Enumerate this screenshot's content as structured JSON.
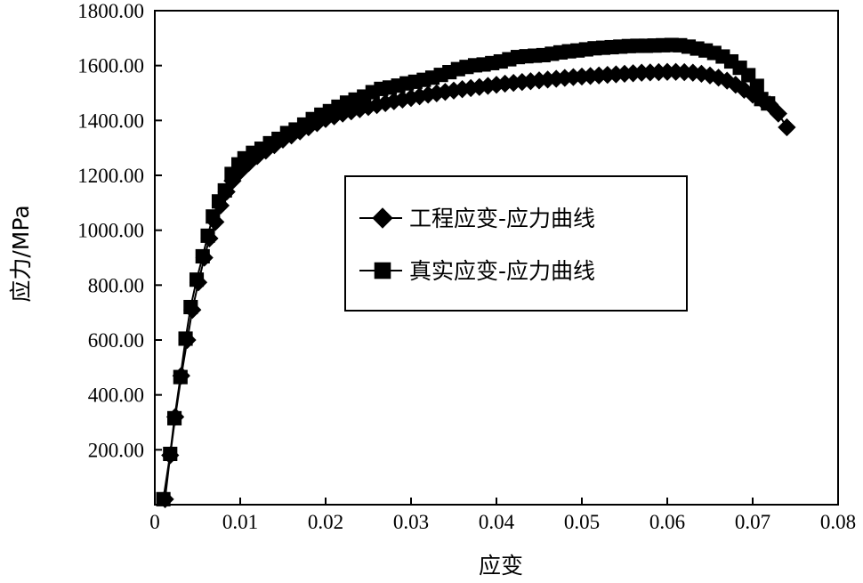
{
  "chart_data": {
    "type": "line",
    "xlabel": "应变",
    "ylabel": "应力/MPa",
    "xlim": [
      0,
      0.08
    ],
    "ylim": [
      0,
      1800
    ],
    "x_ticks": [
      "0",
      "0.01",
      "0.02",
      "0.03",
      "0.04",
      "0.05",
      "0.06",
      "0.07",
      "0.08"
    ],
    "y_ticks": [
      "200.00",
      "400.00",
      "600.00",
      "800.00",
      "1000.00",
      "1200.00",
      "1400.00",
      "1600.00",
      "1800.00"
    ],
    "grid": false,
    "legend_position": "center-right",
    "series": [
      {
        "name": "工程应变-应力曲线",
        "marker": "diamond",
        "color": "#000000",
        "points": [
          [
            0.0012,
            20
          ],
          [
            0.0018,
            180
          ],
          [
            0.0024,
            320
          ],
          [
            0.0031,
            470
          ],
          [
            0.0038,
            600
          ],
          [
            0.0044,
            710
          ],
          [
            0.0051,
            810
          ],
          [
            0.0058,
            900
          ],
          [
            0.0064,
            970
          ],
          [
            0.0071,
            1030
          ],
          [
            0.0077,
            1090
          ],
          [
            0.0084,
            1140
          ],
          [
            0.0091,
            1180
          ],
          [
            0.01,
            1215
          ],
          [
            0.011,
            1245
          ],
          [
            0.012,
            1270
          ],
          [
            0.013,
            1290
          ],
          [
            0.014,
            1310
          ],
          [
            0.015,
            1330
          ],
          [
            0.016,
            1345
          ],
          [
            0.017,
            1360
          ],
          [
            0.018,
            1375
          ],
          [
            0.019,
            1390
          ],
          [
            0.02,
            1405
          ],
          [
            0.021,
            1415
          ],
          [
            0.022,
            1425
          ],
          [
            0.023,
            1433
          ],
          [
            0.024,
            1441
          ],
          [
            0.025,
            1449
          ],
          [
            0.026,
            1456
          ],
          [
            0.027,
            1463
          ],
          [
            0.028,
            1470
          ],
          [
            0.029,
            1476
          ],
          [
            0.03,
            1482
          ],
          [
            0.031,
            1488
          ],
          [
            0.032,
            1494
          ],
          [
            0.033,
            1499
          ],
          [
            0.034,
            1504
          ],
          [
            0.035,
            1509
          ],
          [
            0.036,
            1514
          ],
          [
            0.037,
            1518
          ],
          [
            0.038,
            1522
          ],
          [
            0.039,
            1526
          ],
          [
            0.04,
            1530
          ],
          [
            0.041,
            1534
          ],
          [
            0.042,
            1537
          ],
          [
            0.043,
            1540
          ],
          [
            0.044,
            1543
          ],
          [
            0.045,
            1546
          ],
          [
            0.046,
            1549
          ],
          [
            0.047,
            1552
          ],
          [
            0.048,
            1555
          ],
          [
            0.049,
            1558
          ],
          [
            0.05,
            1560
          ],
          [
            0.051,
            1562
          ],
          [
            0.052,
            1564
          ],
          [
            0.053,
            1566
          ],
          [
            0.054,
            1568
          ],
          [
            0.055,
            1570
          ],
          [
            0.056,
            1572
          ],
          [
            0.057,
            1574
          ],
          [
            0.058,
            1575
          ],
          [
            0.059,
            1576
          ],
          [
            0.06,
            1577
          ],
          [
            0.061,
            1577
          ],
          [
            0.062,
            1576
          ],
          [
            0.063,
            1574
          ],
          [
            0.064,
            1570
          ],
          [
            0.065,
            1564
          ],
          [
            0.066,
            1556
          ],
          [
            0.067,
            1545
          ],
          [
            0.068,
            1530
          ],
          [
            0.069,
            1512
          ],
          [
            0.07,
            1494
          ],
          [
            0.071,
            1478
          ],
          [
            0.072,
            1458
          ],
          [
            0.073,
            1425
          ],
          [
            0.074,
            1375
          ]
        ]
      },
      {
        "name": "真实应变-应力曲线",
        "marker": "square",
        "color": "#000000",
        "points": [
          [
            0.001,
            20
          ],
          [
            0.0018,
            185
          ],
          [
            0.0023,
            315
          ],
          [
            0.003,
            465
          ],
          [
            0.0036,
            605
          ],
          [
            0.0042,
            720
          ],
          [
            0.0049,
            820
          ],
          [
            0.0056,
            905
          ],
          [
            0.0062,
            980
          ],
          [
            0.0068,
            1050
          ],
          [
            0.0075,
            1105
          ],
          [
            0.0082,
            1145
          ],
          [
            0.009,
            1205
          ],
          [
            0.0098,
            1240
          ],
          [
            0.0105,
            1262
          ],
          [
            0.0115,
            1282
          ],
          [
            0.0125,
            1297
          ],
          [
            0.0135,
            1317
          ],
          [
            0.0145,
            1333
          ],
          [
            0.0155,
            1354
          ],
          [
            0.0165,
            1367
          ],
          [
            0.0175,
            1385
          ],
          [
            0.0185,
            1405
          ],
          [
            0.0195,
            1421
          ],
          [
            0.0205,
            1434
          ],
          [
            0.0215,
            1450
          ],
          [
            0.0225,
            1465
          ],
          [
            0.0235,
            1476
          ],
          [
            0.0245,
            1487
          ],
          [
            0.0255,
            1503
          ],
          [
            0.0265,
            1515
          ],
          [
            0.0275,
            1520
          ],
          [
            0.0285,
            1527
          ],
          [
            0.0295,
            1535
          ],
          [
            0.0305,
            1541
          ],
          [
            0.0315,
            1548
          ],
          [
            0.0325,
            1556
          ],
          [
            0.0335,
            1566
          ],
          [
            0.0345,
            1576
          ],
          [
            0.0355,
            1587
          ],
          [
            0.0365,
            1595
          ],
          [
            0.0375,
            1601
          ],
          [
            0.0385,
            1604
          ],
          [
            0.0395,
            1609
          ],
          [
            0.0405,
            1615
          ],
          [
            0.0415,
            1623
          ],
          [
            0.0425,
            1631
          ],
          [
            0.0435,
            1634
          ],
          [
            0.0445,
            1636
          ],
          [
            0.0455,
            1638
          ],
          [
            0.0465,
            1643
          ],
          [
            0.0475,
            1648
          ],
          [
            0.0485,
            1652
          ],
          [
            0.0495,
            1655
          ],
          [
            0.0505,
            1659
          ],
          [
            0.0515,
            1663
          ],
          [
            0.0525,
            1665
          ],
          [
            0.0535,
            1667
          ],
          [
            0.0545,
            1669
          ],
          [
            0.0555,
            1671
          ],
          [
            0.0565,
            1672
          ],
          [
            0.0575,
            1672
          ],
          [
            0.0585,
            1673
          ],
          [
            0.0595,
            1674
          ],
          [
            0.0605,
            1675
          ],
          [
            0.0615,
            1674
          ],
          [
            0.0625,
            1669
          ],
          [
            0.0635,
            1662
          ],
          [
            0.0645,
            1655
          ],
          [
            0.0655,
            1646
          ],
          [
            0.0665,
            1633
          ],
          [
            0.0675,
            1615
          ],
          [
            0.0685,
            1592
          ],
          [
            0.0695,
            1565
          ],
          [
            0.0705,
            1526
          ],
          [
            0.071,
            1478
          ],
          [
            0.0718,
            1462
          ]
        ]
      }
    ]
  }
}
